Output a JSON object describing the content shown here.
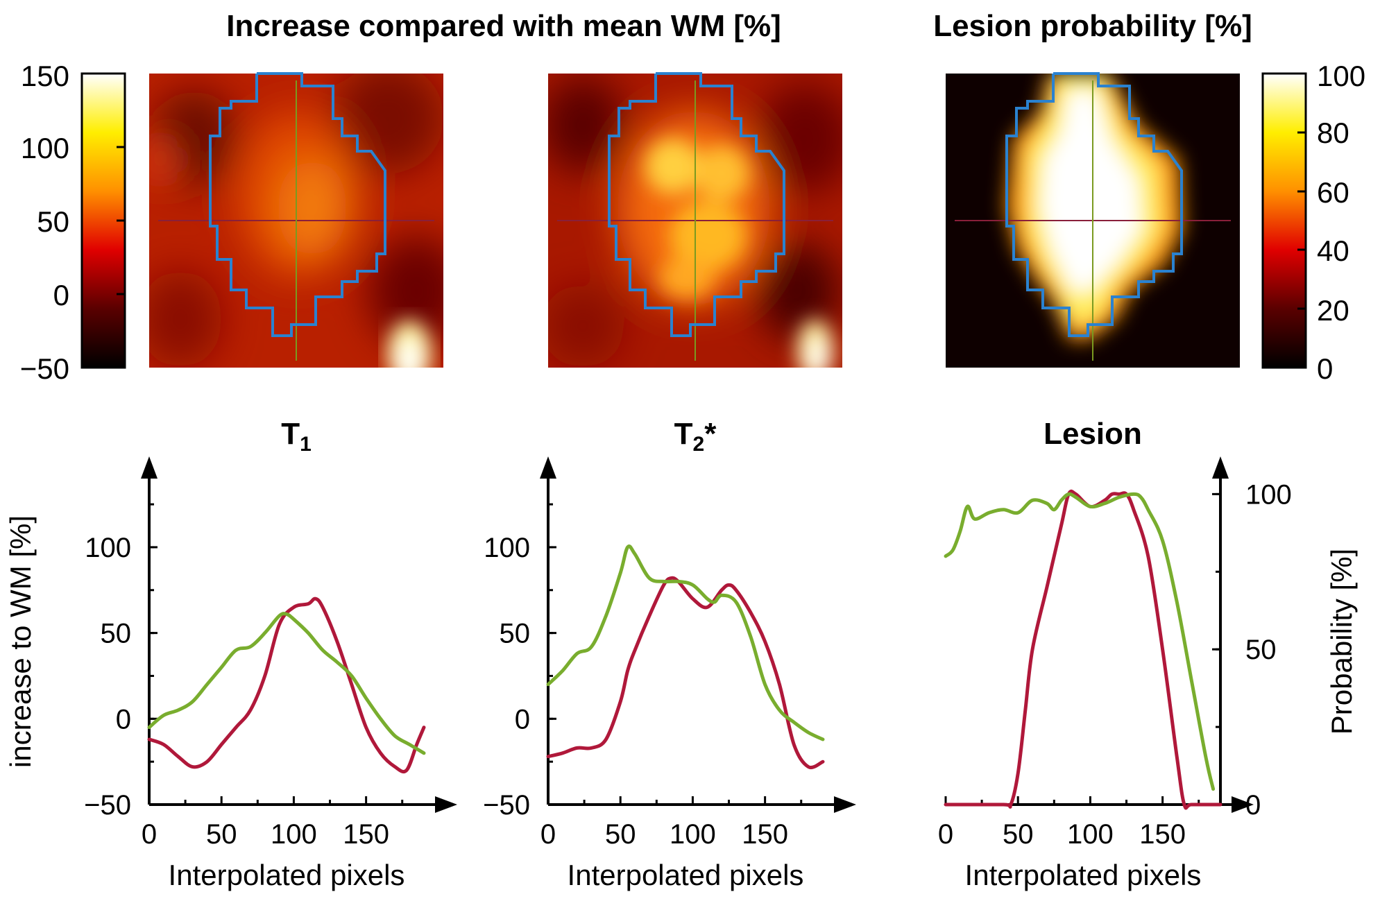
{
  "titles": {
    "top_left": "Increase compared with mean WM [%]",
    "top_right": "Lesion probability [%]",
    "t1": "T",
    "t1_sub": "1",
    "t2": "T",
    "t2_sub": "2",
    "t2_suffix": "*",
    "lesion": "Lesion"
  },
  "colors": {
    "red_series": "#b0183a",
    "green_series": "#79ad2e",
    "roi_outline": "#2a82d0",
    "crosshair_h": "#8a1f3a",
    "crosshair_v": "#7a9a20"
  },
  "colorbar_left": {
    "ticks": [
      "150",
      "100",
      "50",
      "0",
      "−50"
    ],
    "min": -50,
    "max": 150
  },
  "colorbar_right": {
    "ticks": [
      "100",
      "80",
      "60",
      "40",
      "20",
      "0"
    ],
    "min": 0,
    "max": 100
  },
  "chart_data": [
    {
      "type": "line",
      "name": "T1 profile",
      "xlabel": "Interpolated pixels",
      "ylabel": "increase to WM [%]",
      "xlim": [
        0,
        190
      ],
      "ylim": [
        -50,
        140
      ],
      "xticks": [
        "0",
        "50",
        "100",
        "150"
      ],
      "yticks": [
        "100",
        "50",
        "0",
        "−50"
      ],
      "series": [
        {
          "color": "red",
          "x": [
            0,
            10,
            20,
            30,
            40,
            50,
            60,
            70,
            80,
            90,
            100,
            110,
            115,
            120,
            130,
            140,
            150,
            160,
            170,
            178,
            185,
            190
          ],
          "values": [
            -12,
            -15,
            -22,
            -28,
            -25,
            -15,
            -5,
            5,
            25,
            55,
            65,
            67,
            70,
            65,
            45,
            20,
            -5,
            -20,
            -28,
            -30,
            -15,
            -5
          ]
        },
        {
          "color": "green",
          "x": [
            0,
            10,
            20,
            30,
            40,
            50,
            60,
            70,
            80,
            90,
            95,
            100,
            110,
            120,
            130,
            140,
            150,
            160,
            170,
            180,
            190
          ],
          "values": [
            -5,
            2,
            5,
            10,
            20,
            30,
            40,
            42,
            50,
            60,
            61,
            58,
            50,
            40,
            33,
            25,
            12,
            0,
            -10,
            -15,
            -20
          ]
        }
      ]
    },
    {
      "type": "line",
      "name": "T2* profile",
      "xlabel": "Interpolated pixels",
      "ylabel": "",
      "xlim": [
        0,
        190
      ],
      "ylim": [
        -50,
        140
      ],
      "xticks": [
        "0",
        "50",
        "100",
        "150"
      ],
      "yticks": [
        "100",
        "50",
        "0",
        "−50"
      ],
      "series": [
        {
          "color": "red",
          "x": [
            0,
            10,
            20,
            30,
            40,
            50,
            55,
            60,
            70,
            80,
            85,
            90,
            100,
            110,
            120,
            125,
            130,
            140,
            150,
            160,
            170,
            180,
            190
          ],
          "values": [
            -22,
            -20,
            -17,
            -17,
            -12,
            10,
            28,
            40,
            60,
            78,
            82,
            80,
            70,
            65,
            75,
            78,
            75,
            62,
            45,
            20,
            -15,
            -28,
            -25
          ]
        },
        {
          "color": "green",
          "x": [
            0,
            10,
            20,
            30,
            40,
            50,
            55,
            60,
            70,
            80,
            90,
            100,
            110,
            115,
            120,
            130,
            140,
            150,
            160,
            170,
            180,
            190
          ],
          "values": [
            20,
            28,
            38,
            42,
            60,
            85,
            100,
            96,
            82,
            80,
            80,
            78,
            70,
            68,
            72,
            68,
            48,
            20,
            5,
            -2,
            -8,
            -12
          ]
        }
      ]
    },
    {
      "type": "line",
      "name": "Lesion profile",
      "xlabel": "Interpolated pixels",
      "ylabel": "Probability [%]",
      "xlim": [
        0,
        190
      ],
      "ylim": [
        0,
        105
      ],
      "xticks": [
        "0",
        "50",
        "100",
        "150"
      ],
      "yticks": [
        "100",
        "50",
        "0"
      ],
      "series": [
        {
          "color": "red",
          "x": [
            0,
            40,
            45,
            50,
            55,
            60,
            70,
            80,
            85,
            90,
            100,
            110,
            115,
            120,
            125,
            130,
            140,
            150,
            160,
            165,
            170,
            190
          ],
          "values": [
            0,
            0,
            0,
            10,
            30,
            50,
            70,
            90,
            100,
            100,
            96,
            98,
            100,
            100,
            100,
            95,
            80,
            50,
            15,
            0,
            0,
            0
          ]
        },
        {
          "color": "green",
          "x": [
            0,
            5,
            10,
            15,
            20,
            30,
            40,
            50,
            60,
            70,
            75,
            80,
            85,
            90,
            100,
            110,
            120,
            130,
            135,
            140,
            150,
            160,
            170,
            180,
            185
          ],
          "values": [
            80,
            82,
            88,
            96,
            92,
            94,
            95,
            94,
            98,
            97,
            95,
            98,
            100,
            99,
            96,
            97,
            99,
            100,
            99,
            95,
            85,
            65,
            40,
            15,
            5
          ]
        }
      ]
    }
  ],
  "heatmaps": [
    {
      "name": "T1 map"
    },
    {
      "name": "T2* map"
    },
    {
      "name": "Lesion probability map"
    }
  ]
}
